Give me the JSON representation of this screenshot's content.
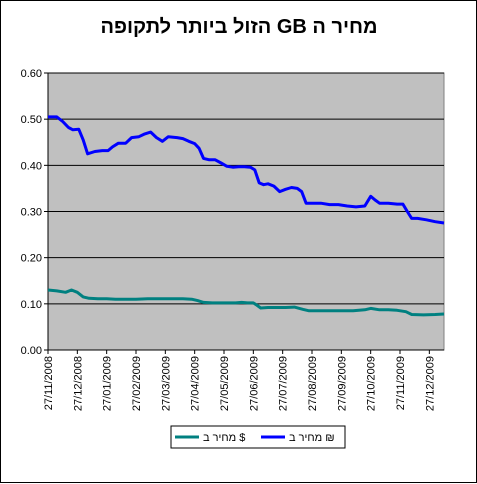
{
  "chart_data": {
    "type": "line",
    "title": "מחיר ה GB הזול ביותר לתקופה",
    "xlabel": "",
    "ylabel": "",
    "x_categories": [
      "27/11/2008",
      "27/12/2008",
      "27/01/2009",
      "27/02/2009",
      "27/03/2009",
      "27/04/2009",
      "27/05/2009",
      "27/06/2009",
      "27/07/2009",
      "27/08/2009",
      "27/09/2009",
      "27/10/2009",
      "27/11/2009",
      "27/12/2009"
    ],
    "x_range_months": [
      0,
      13.5
    ],
    "ylim": [
      0,
      0.6
    ],
    "y_ticks": [
      "0.00",
      "0.10",
      "0.20",
      "0.30",
      "0.40",
      "0.50",
      "0.60"
    ],
    "grid": true,
    "plot_background": "#c0c0c0",
    "legend_position": "bottom",
    "series": [
      {
        "name": "מחיר ב ₪",
        "color": "#0000ff",
        "points": [
          [
            0.0,
            0.505
          ],
          [
            0.3,
            0.505
          ],
          [
            0.5,
            0.495
          ],
          [
            0.7,
            0.482
          ],
          [
            0.85,
            0.477
          ],
          [
            1.05,
            0.478
          ],
          [
            1.2,
            0.455
          ],
          [
            1.35,
            0.425
          ],
          [
            1.6,
            0.43
          ],
          [
            1.85,
            0.432
          ],
          [
            2.05,
            0.432
          ],
          [
            2.2,
            0.44
          ],
          [
            2.4,
            0.448
          ],
          [
            2.65,
            0.448
          ],
          [
            2.85,
            0.46
          ],
          [
            3.1,
            0.462
          ],
          [
            3.3,
            0.468
          ],
          [
            3.5,
            0.472
          ],
          [
            3.7,
            0.46
          ],
          [
            3.9,
            0.452
          ],
          [
            4.1,
            0.462
          ],
          [
            4.4,
            0.46
          ],
          [
            4.6,
            0.458
          ],
          [
            4.8,
            0.452
          ],
          [
            5.0,
            0.447
          ],
          [
            5.15,
            0.437
          ],
          [
            5.3,
            0.415
          ],
          [
            5.5,
            0.412
          ],
          [
            5.7,
            0.412
          ],
          [
            5.9,
            0.405
          ],
          [
            6.1,
            0.398
          ],
          [
            6.3,
            0.396
          ],
          [
            6.5,
            0.397
          ],
          [
            6.7,
            0.397
          ],
          [
            6.9,
            0.396
          ],
          [
            7.05,
            0.39
          ],
          [
            7.2,
            0.362
          ],
          [
            7.35,
            0.358
          ],
          [
            7.5,
            0.36
          ],
          [
            7.7,
            0.355
          ],
          [
            7.9,
            0.343
          ],
          [
            8.1,
            0.348
          ],
          [
            8.3,
            0.352
          ],
          [
            8.5,
            0.35
          ],
          [
            8.65,
            0.343
          ],
          [
            8.8,
            0.318
          ],
          [
            9.0,
            0.318
          ],
          [
            9.3,
            0.318
          ],
          [
            9.6,
            0.315
          ],
          [
            9.9,
            0.315
          ],
          [
            10.2,
            0.312
          ],
          [
            10.5,
            0.31
          ],
          [
            10.8,
            0.312
          ],
          [
            11.0,
            0.333
          ],
          [
            11.15,
            0.325
          ],
          [
            11.3,
            0.318
          ],
          [
            11.6,
            0.318
          ],
          [
            11.9,
            0.316
          ],
          [
            12.1,
            0.316
          ],
          [
            12.25,
            0.3
          ],
          [
            12.4,
            0.285
          ],
          [
            12.6,
            0.285
          ],
          [
            12.9,
            0.282
          ],
          [
            13.2,
            0.278
          ],
          [
            13.5,
            0.275
          ]
        ]
      },
      {
        "name": "מחיר ב $",
        "color": "#008080",
        "points": [
          [
            0.0,
            0.13
          ],
          [
            0.3,
            0.128
          ],
          [
            0.6,
            0.125
          ],
          [
            0.8,
            0.13
          ],
          [
            1.0,
            0.125
          ],
          [
            1.2,
            0.115
          ],
          [
            1.4,
            0.112
          ],
          [
            1.7,
            0.111
          ],
          [
            2.0,
            0.111
          ],
          [
            2.3,
            0.11
          ],
          [
            2.6,
            0.11
          ],
          [
            3.0,
            0.11
          ],
          [
            3.4,
            0.111
          ],
          [
            3.8,
            0.111
          ],
          [
            4.2,
            0.111
          ],
          [
            4.6,
            0.111
          ],
          [
            4.9,
            0.11
          ],
          [
            5.1,
            0.107
          ],
          [
            5.3,
            0.103
          ],
          [
            5.6,
            0.102
          ],
          [
            5.9,
            0.102
          ],
          [
            6.2,
            0.102
          ],
          [
            6.4,
            0.102
          ],
          [
            6.6,
            0.103
          ],
          [
            6.8,
            0.102
          ],
          [
            7.0,
            0.102
          ],
          [
            7.1,
            0.098
          ],
          [
            7.25,
            0.091
          ],
          [
            7.5,
            0.092
          ],
          [
            7.8,
            0.092
          ],
          [
            8.1,
            0.092
          ],
          [
            8.4,
            0.093
          ],
          [
            8.7,
            0.088
          ],
          [
            8.9,
            0.085
          ],
          [
            9.2,
            0.085
          ],
          [
            9.6,
            0.085
          ],
          [
            10.0,
            0.085
          ],
          [
            10.4,
            0.085
          ],
          [
            10.8,
            0.087
          ],
          [
            11.0,
            0.09
          ],
          [
            11.3,
            0.087
          ],
          [
            11.6,
            0.087
          ],
          [
            11.9,
            0.086
          ],
          [
            12.2,
            0.083
          ],
          [
            12.4,
            0.077
          ],
          [
            12.8,
            0.076
          ],
          [
            13.2,
            0.077
          ],
          [
            13.5,
            0.078
          ]
        ]
      }
    ]
  }
}
